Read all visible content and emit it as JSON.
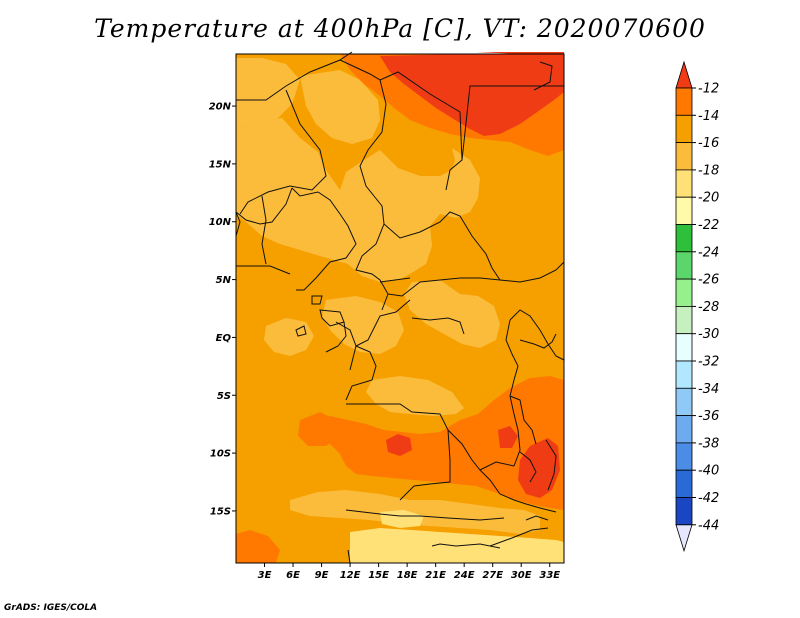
{
  "title": "Temperature at 400hPa [C], VT: 2020070600",
  "credit": "GrADS: IGES/COLA",
  "map": {
    "lat_ticks": [
      "20N",
      "15N",
      "10N",
      "5N",
      "EQ",
      "5S",
      "10S",
      "15S"
    ],
    "lon_ticks": [
      "3E",
      "6E",
      "9E",
      "12E",
      "15E",
      "18E",
      "21E",
      "24E",
      "27E",
      "30E",
      "33E"
    ],
    "lat_range": [
      -19.5,
      24.5
    ],
    "lon_range": [
      0,
      34.5
    ],
    "colors": {
      "c_m12": "#f03c14",
      "c_m14": "#ff7800",
      "c_m16": "#f6a000",
      "c_m18": "#fbbc3c",
      "c_m20": "#ffe178",
      "border": "#111111"
    }
  },
  "colorbar": {
    "labels": [
      "-12",
      "-14",
      "-16",
      "-18",
      "-20",
      "-22",
      "-24",
      "-26",
      "-28",
      "-30",
      "-32",
      "-34",
      "-36",
      "-38",
      "-40",
      "-42",
      "-44"
    ],
    "colors": [
      "#f03c14",
      "#ff7800",
      "#f6a000",
      "#fbbc3c",
      "#ffe178",
      "#fffaaa",
      "#2fc03b",
      "#5ad66a",
      "#96f08c",
      "#c6f0c0",
      "#e8ffff",
      "#b2e8ff",
      "#8fcaf7",
      "#6eaaf0",
      "#4b8ce6",
      "#2a6ad6",
      "#1a46c4",
      "#0a2a9a",
      "#e6e6ff"
    ]
  }
}
